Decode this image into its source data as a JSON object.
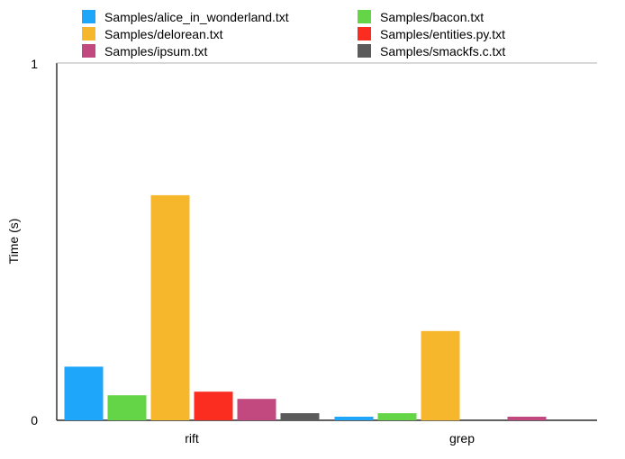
{
  "chart_data": {
    "type": "bar",
    "title": "",
    "xlabel": "",
    "ylabel": "Time (s)",
    "ylim": [
      0,
      1
    ],
    "yticks": [
      "0",
      "1"
    ],
    "categories": [
      "rift",
      "grep"
    ],
    "grid": false,
    "legend_position": "top",
    "series": [
      {
        "name": "Samples/alice_in_wonderland.txt",
        "color": "#1ea6fb",
        "values": [
          0.15,
          0.01
        ]
      },
      {
        "name": "Samples/bacon.txt",
        "color": "#64d546",
        "values": [
          0.07,
          0.02
        ]
      },
      {
        "name": "Samples/delorean.txt",
        "color": "#f6b72d",
        "values": [
          0.63,
          0.25
        ]
      },
      {
        "name": "Samples/entities.py.txt",
        "color": "#fb2d20",
        "values": [
          0.08,
          0.0
        ]
      },
      {
        "name": "Samples/ipsum.txt",
        "color": "#c1497f",
        "values": [
          0.06,
          0.01
        ]
      },
      {
        "name": "Samples/smackfs.c.txt",
        "color": "#5b5b5b",
        "values": [
          0.02,
          0.0
        ]
      }
    ]
  }
}
